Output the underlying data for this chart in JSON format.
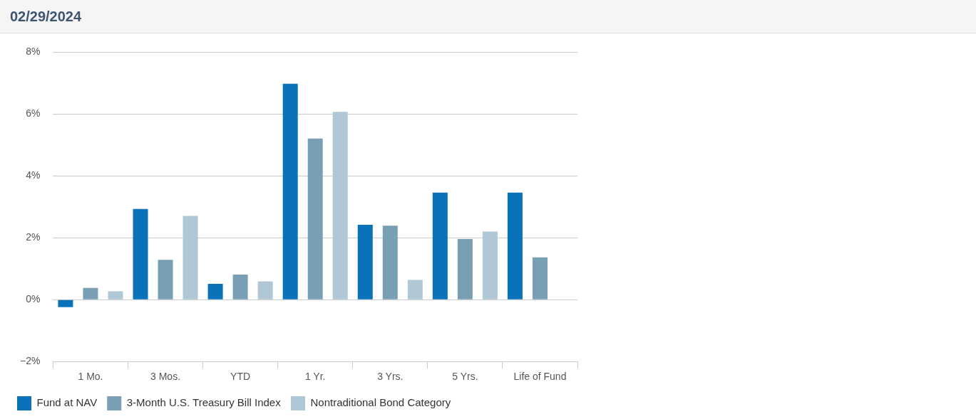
{
  "chart_data": {
    "type": "bar",
    "title": "02/29/2024",
    "categories": [
      "1 Mo.",
      "3 Mos.",
      "YTD",
      "1 Yr.",
      "3 Yrs.",
      "5 Yrs.",
      "Life of Fund"
    ],
    "series": [
      {
        "name": "Fund at NAV",
        "color": "#0a72b8",
        "values": [
          -0.24,
          2.93,
          0.51,
          6.98,
          2.42,
          3.46,
          3.46
        ]
      },
      {
        "name": "3-Month U.S. Treasury Bill Index",
        "color": "#789fb4",
        "values": [
          0.38,
          1.29,
          0.81,
          5.21,
          2.39,
          1.96,
          1.37
        ]
      },
      {
        "name": "Nontraditional Bond Category",
        "color": "#b0c8d5",
        "values": [
          0.27,
          2.71,
          0.59,
          6.07,
          0.64,
          2.2,
          null
        ]
      }
    ],
    "ylim": [
      -2,
      8
    ],
    "yticks": [
      {
        "value": -2,
        "label": "−2%"
      },
      {
        "value": 0,
        "label": "0%"
      },
      {
        "value": 2,
        "label": "2%"
      },
      {
        "value": 4,
        "label": "4%"
      },
      {
        "value": 6,
        "label": "6%"
      },
      {
        "value": 8,
        "label": "8%"
      }
    ],
    "grid": "y",
    "legend": "bottom"
  }
}
